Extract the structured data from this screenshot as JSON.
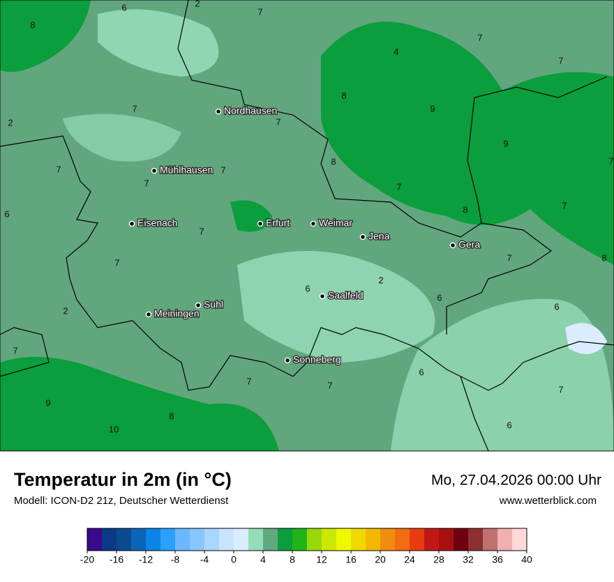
{
  "map": {
    "cities": [
      "Nordhausen",
      "Mühlhausen",
      "Eisenach",
      "Erfurt",
      "Weimar",
      "Jena",
      "Gera",
      "Saalfeld",
      "Suhl",
      "Meiningen",
      "Sonneberg"
    ],
    "values": [
      6,
      2,
      7,
      8,
      7,
      4,
      7,
      8,
      9,
      7,
      7,
      2,
      9,
      8,
      7,
      7,
      7,
      7,
      7,
      8,
      7,
      6,
      7,
      7,
      7,
      8,
      2,
      6,
      6,
      6,
      2,
      7,
      7,
      6,
      7,
      7,
      9,
      8,
      6,
      10
    ]
  },
  "footer": {
    "title": "Temperatur in 2m (in °C)",
    "subtitle": "Modell: ICON-D2 21z, Deutscher Wetterdienst",
    "date": "Mo, 27.04.2026 00:00 Uhr",
    "website": "www.wetterblick.com"
  },
  "colorbar": {
    "lim": [
      -20,
      40
    ],
    "bounds": [
      -20,
      -18,
      -16,
      -14,
      -12,
      -10,
      -8,
      -6,
      -4,
      -2,
      0,
      2,
      4,
      6,
      8,
      10,
      12,
      14,
      16,
      18,
      20,
      22,
      24,
      26,
      28,
      30,
      32,
      34,
      36,
      38,
      40
    ],
    "ticks": [
      -20,
      -16,
      -12,
      -8,
      -4,
      0,
      4,
      8,
      12,
      16,
      20,
      24,
      28,
      32,
      36,
      40
    ],
    "colors": [
      "#3a0a8a",
      "#0c3a88",
      "#0a4a8e",
      "#0a64b8",
      "#0a84e8",
      "#2aa0ff",
      "#6cb8ff",
      "#88c6ff",
      "#a8d6ff",
      "#c8e4ff",
      "#dcecff",
      "#96dcb8",
      "#60a880",
      "#0a9e3c",
      "#20b418",
      "#98d808",
      "#cce800",
      "#f0f800",
      "#f0d800",
      "#f0b800",
      "#f08c10",
      "#f06e10",
      "#e83c10",
      "#c01818",
      "#a81010",
      "#700010",
      "#8a3030",
      "#c07070",
      "#f0b0b0",
      "#ffd8d8"
    ]
  }
}
